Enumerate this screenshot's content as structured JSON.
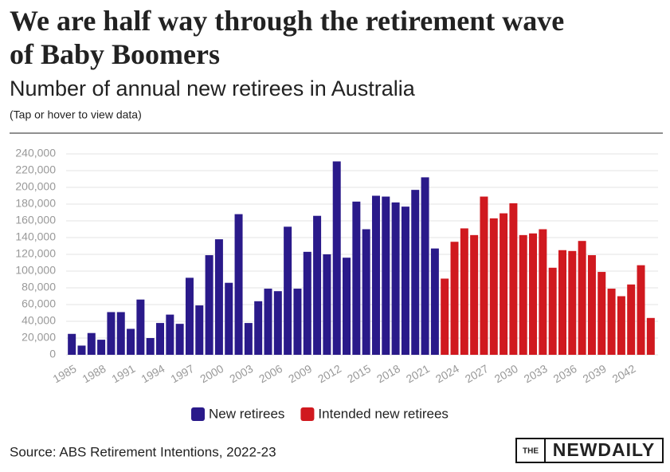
{
  "chart_data": {
    "type": "bar",
    "title": "We are half way through the retirement wave of Baby Boomers",
    "subtitle": "Number of annual new retirees in Australia",
    "note": "(Tap or hover to view data)",
    "source": "Source: ABS Retirement Intentions, 2022-23",
    "logo": {
      "small": "THE",
      "main": "NEWDAILY"
    },
    "categories": [
      "1985",
      null,
      null,
      "1988",
      null,
      null,
      "1991",
      null,
      null,
      "1994",
      null,
      null,
      "1997",
      null,
      null,
      "2000",
      null,
      null,
      "2003",
      null,
      null,
      "2006",
      null,
      null,
      "2009",
      null,
      null,
      "2012",
      null,
      null,
      "2015",
      null,
      null,
      "2018",
      null,
      null,
      "2021",
      null,
      null,
      "2024",
      null,
      null,
      "2027",
      null,
      null,
      "2030",
      null,
      null,
      "2033",
      null,
      null,
      "2036",
      null,
      null,
      "2039",
      null,
      null,
      "2042",
      null,
      null
    ],
    "series": [
      {
        "name": "New retirees",
        "color": "#2a1a8a",
        "values": [
          25000,
          11000,
          26000,
          18000,
          51000,
          51000,
          31000,
          66000,
          20000,
          38000,
          48000,
          37000,
          92000,
          59000,
          119000,
          138000,
          86000,
          168000,
          38000,
          64000,
          79000,
          76000,
          153000,
          79000,
          123000,
          166000,
          120000,
          231000,
          116000,
          183000,
          150000,
          190000,
          189000,
          182000,
          177000,
          197000,
          212000,
          127000,
          null,
          null,
          null,
          null,
          null,
          null,
          null,
          null,
          null,
          null,
          null,
          null,
          null,
          null,
          null,
          null,
          null,
          null,
          null,
          null,
          null,
          null
        ]
      },
      {
        "name": "Intended new retirees",
        "color": "#d0191f",
        "values": [
          null,
          null,
          null,
          null,
          null,
          null,
          null,
          null,
          null,
          null,
          null,
          null,
          null,
          null,
          null,
          null,
          null,
          null,
          null,
          null,
          null,
          null,
          null,
          null,
          null,
          null,
          null,
          null,
          null,
          null,
          null,
          null,
          null,
          null,
          null,
          null,
          null,
          null,
          91000,
          135000,
          151000,
          143000,
          189000,
          163000,
          169000,
          181000,
          143000,
          145000,
          150000,
          104000,
          125000,
          124000,
          136000,
          119000,
          99000,
          79000,
          70000,
          84000,
          107000,
          44000
        ]
      }
    ],
    "ylim": [
      0,
      240000
    ],
    "yticks": [
      0,
      {
        "value": 20000,
        "label": "20,000"
      },
      {
        "value": 40000,
        "label": "40,000"
      },
      {
        "value": 60000,
        "label": "60,000"
      },
      {
        "value": 80000,
        "label": "80,000"
      },
      {
        "value": 100000,
        "label": "100,000"
      },
      {
        "value": 120000,
        "label": "120,000"
      },
      {
        "value": 140000,
        "label": "140,000"
      },
      {
        "value": 160000,
        "label": "160,000"
      },
      {
        "value": 180000,
        "label": "180,000"
      },
      {
        "value": 200000,
        "label": "200,000"
      },
      {
        "value": 220000,
        "label": "220,000"
      },
      {
        "value": 240000,
        "label": "240,000"
      }
    ],
    "grid": true
  }
}
